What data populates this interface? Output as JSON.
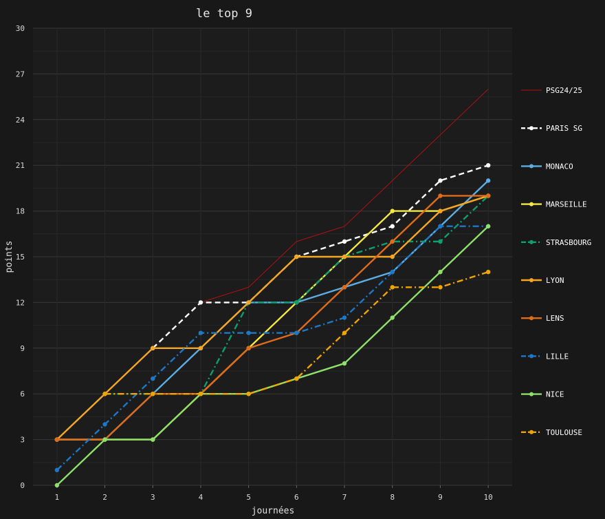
{
  "chart_data": {
    "type": "line",
    "title": "le top 9",
    "xlabel": "journées",
    "ylabel": "points",
    "x": [
      1,
      2,
      3,
      4,
      5,
      6,
      7,
      8,
      9,
      10
    ],
    "xlim": [
      0.5,
      10.5
    ],
    "ylim": [
      0,
      30
    ],
    "yticks": [
      0,
      3,
      6,
      9,
      12,
      15,
      18,
      21,
      24,
      27,
      30
    ],
    "grid": true,
    "legend_position": "right",
    "series": [
      {
        "name": "PSG24/25",
        "color": "#b01010",
        "style": "thin",
        "marker": false,
        "x": [
          4,
          5,
          6,
          7,
          8,
          9,
          10
        ],
        "values": [
          12,
          13,
          16,
          17,
          20,
          23,
          26
        ]
      },
      {
        "name": "PARIS SG",
        "color": "#ffffff",
        "style": "dashed",
        "marker": true,
        "x": [
          3,
          4,
          5,
          6,
          7,
          8,
          9,
          10
        ],
        "values": [
          9,
          12,
          12,
          15,
          16,
          17,
          20,
          21
        ]
      },
      {
        "name": "MONACO",
        "color": "#5dade2",
        "style": "solid",
        "marker": true,
        "x": [
          1,
          2,
          3,
          4,
          5,
          6,
          7,
          8,
          9,
          10
        ],
        "values": [
          3,
          3,
          6,
          9,
          12,
          12,
          13,
          14,
          17,
          20
        ]
      },
      {
        "name": "MARSEILLE",
        "color": "#f4e842",
        "style": "solid",
        "marker": true,
        "x": [
          1,
          2,
          3,
          4,
          5,
          6,
          7,
          8,
          9,
          10
        ],
        "values": [
          3,
          3,
          3,
          6,
          9,
          12,
          15,
          18,
          18,
          19
        ]
      },
      {
        "name": "STRASBOURG",
        "color": "#0e9f6e",
        "style": "dashdot",
        "marker": true,
        "x": [
          1,
          2,
          3,
          4,
          5,
          6,
          7,
          8,
          9,
          10
        ],
        "values": [
          3,
          6,
          6,
          6,
          12,
          12,
          15,
          16,
          16,
          19
        ]
      },
      {
        "name": "LYON",
        "color": "#f5a623",
        "style": "solid",
        "marker": true,
        "x": [
          1,
          2,
          3,
          4,
          5,
          6,
          7,
          8,
          9,
          10
        ],
        "values": [
          3,
          6,
          9,
          9,
          12,
          15,
          15,
          15,
          18,
          19
        ]
      },
      {
        "name": "LENS",
        "color": "#e06c1a",
        "style": "solid",
        "marker": true,
        "x": [
          1,
          2,
          3,
          4,
          5,
          6,
          7,
          8,
          9,
          10
        ],
        "values": [
          3,
          3,
          6,
          6,
          9,
          10,
          13,
          16,
          19,
          19
        ]
      },
      {
        "name": "LILLE",
        "color": "#1e78c8",
        "style": "dashdot",
        "marker": true,
        "x": [
          1,
          2,
          3,
          4,
          5,
          6,
          7,
          8,
          9,
          10
        ],
        "values": [
          1,
          4,
          7,
          10,
          10,
          10,
          11,
          14,
          17,
          17
        ]
      },
      {
        "name": "NICE",
        "color": "#8ee06a",
        "style": "solid",
        "marker": true,
        "x": [
          1,
          2,
          3,
          4,
          5,
          6,
          7,
          8,
          9,
          10
        ],
        "values": [
          0,
          3,
          3,
          6,
          6,
          7,
          8,
          11,
          14,
          17
        ]
      },
      {
        "name": "TOULOUSE",
        "color": "#f0a500",
        "style": "dashdot",
        "marker": true,
        "x": [
          2,
          3,
          4,
          5,
          6,
          7,
          8,
          9,
          10
        ],
        "values": [
          6,
          6,
          6,
          6,
          7,
          10,
          13,
          13,
          14
        ]
      }
    ]
  }
}
